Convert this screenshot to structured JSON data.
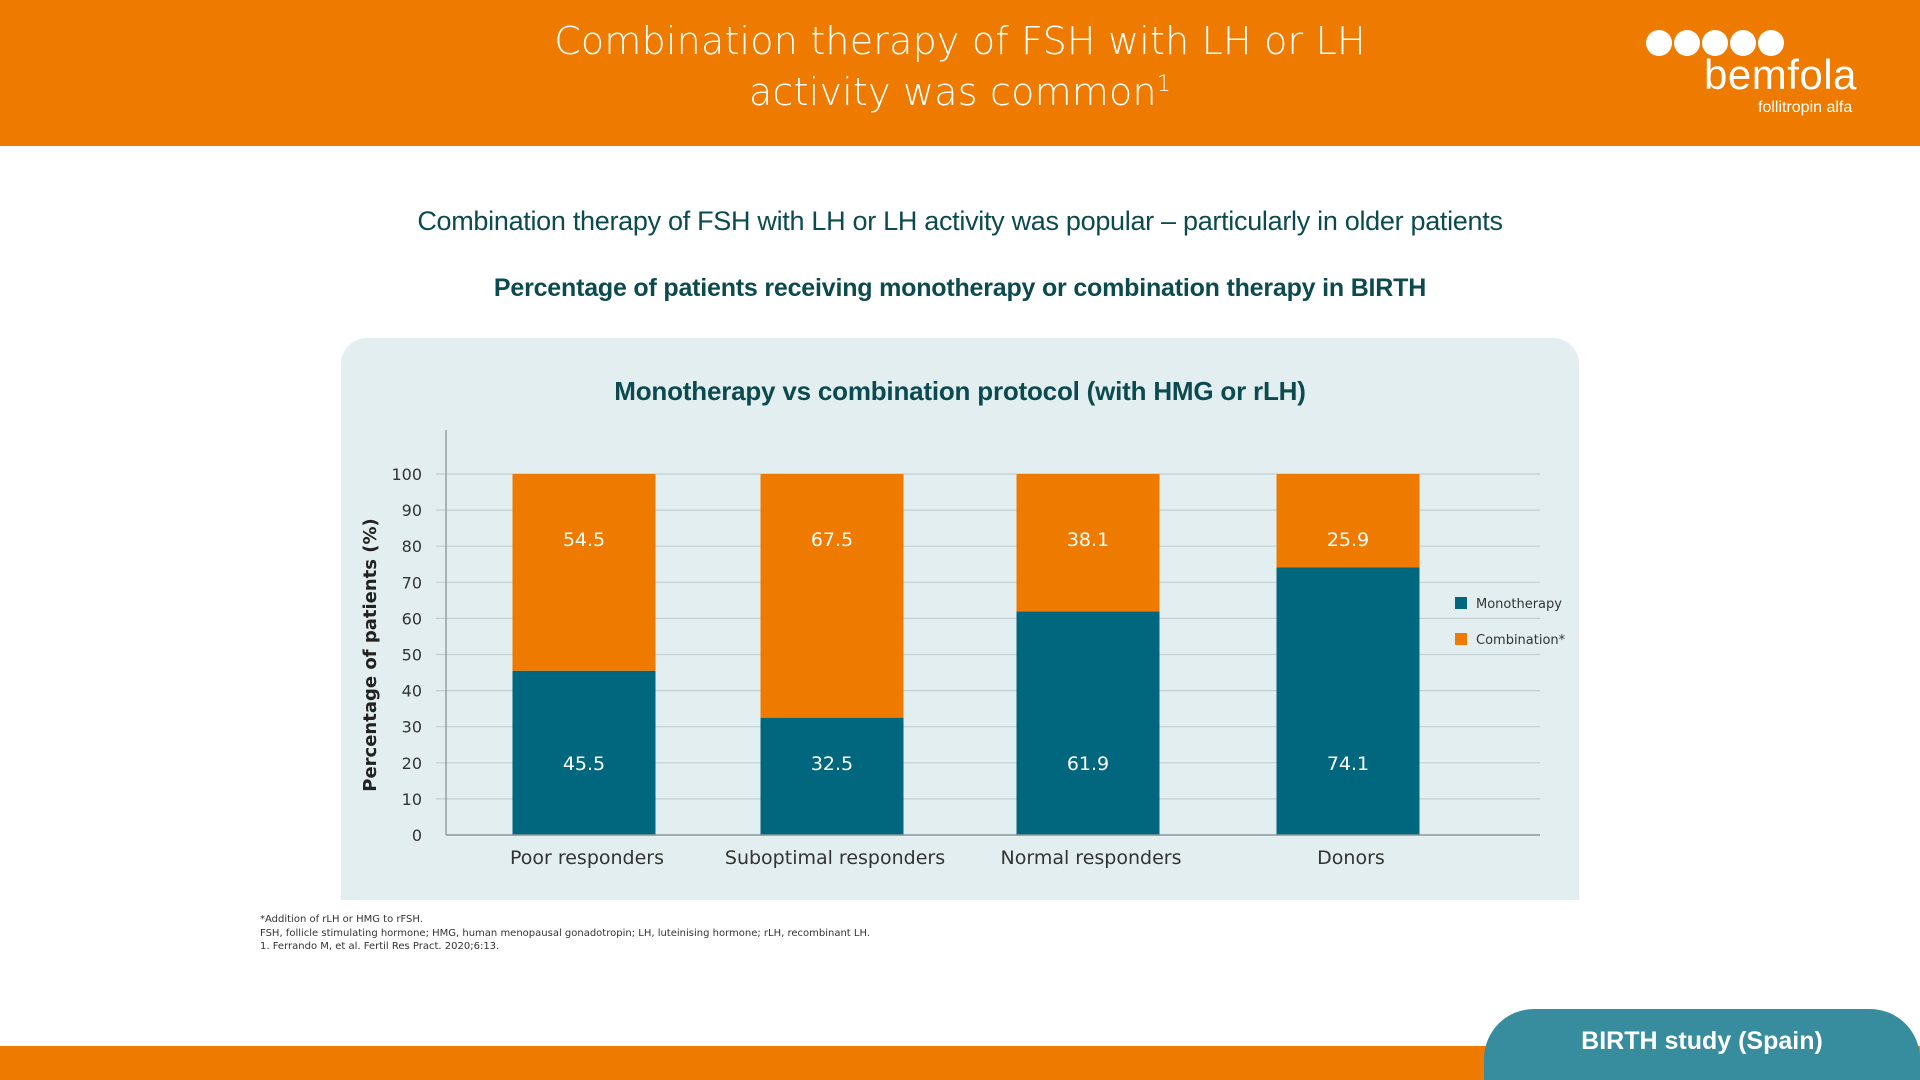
{
  "header": {
    "title_line1": "Combination therapy of FSH with LH or LH",
    "title_line2": "activity was common",
    "title_superscript": "1"
  },
  "logo": {
    "brand": "bemfola",
    "tagline": "follitropin alfa",
    "dot_count": 5
  },
  "subtitle": "Combination therapy of FSH with LH or LH activity was popular – particularly in older patients",
  "section_heading": "Percentage of patients receiving monotherapy or combination therapy in BIRTH",
  "colors": {
    "header_orange": "#ee7b00",
    "monotherapy": "#00677f",
    "combination": "#ee7b00",
    "panel_bg": "#e3eef0",
    "study_tab": "#378c9d",
    "text_dark": "#0b4a4f"
  },
  "chart_data": {
    "type": "bar",
    "stacked": true,
    "title": "Monotherapy vs combination protocol (with HMG or rLH)",
    "xlabel": "",
    "ylabel": "Percentage of patients (%)",
    "ylim": [
      0,
      100
    ],
    "yticks": [
      0,
      10,
      20,
      30,
      40,
      50,
      60,
      70,
      80,
      90,
      100
    ],
    "grid": true,
    "legend_position": "right",
    "categories": [
      "Poor responders",
      "Suboptimal responders",
      "Normal responders",
      "Donors"
    ],
    "series": [
      {
        "name": "Monotherapy",
        "values": [
          45.5,
          32.5,
          61.9,
          74.1
        ],
        "labels": [
          "45.5",
          "32.5",
          "61.9",
          "74.1"
        ]
      },
      {
        "name": "Combination*",
        "values": [
          54.5,
          67.5,
          38.1,
          25.9
        ],
        "labels": [
          "54.5",
          "67.5",
          "38.1",
          "25.9"
        ]
      }
    ]
  },
  "footnotes": [
    "*Addition of rLH or HMG to rFSH.",
    "FSH, follicle stimulating hormone; HMG, human menopausal gonadotropin; LH, luteinising hormone; rLH, recombinant LH.",
    "1. Ferrando M, et al. Fertil Res Pract. 2020;6:13."
  ],
  "study_tab": "BIRTH study (Spain)"
}
